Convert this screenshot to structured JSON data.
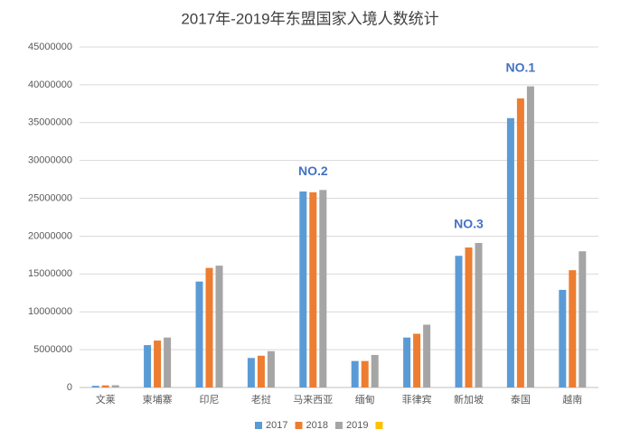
{
  "chart_data": {
    "type": "bar",
    "title": "2017年-2019年东盟国家入境人数统计",
    "categories": [
      "文莱",
      "柬埔寨",
      "印尼",
      "老挝",
      "马来西亚",
      "缅甸",
      "菲律宾",
      "新加坡",
      "泰国",
      "越南"
    ],
    "series": [
      {
        "name": "2017",
        "color": "#5b9bd5",
        "values": [
          218000,
          5600000,
          14000000,
          3900000,
          25900000,
          3500000,
          6600000,
          17400000,
          35600000,
          12900000
        ]
      },
      {
        "name": "2018",
        "color": "#ed7d31",
        "values": [
          278000,
          6200000,
          15800000,
          4200000,
          25800000,
          3500000,
          7100000,
          18500000,
          38200000,
          15500000
        ]
      },
      {
        "name": "2019",
        "color": "#a5a5a5",
        "values": [
          300000,
          6600000,
          16100000,
          4800000,
          26100000,
          4300000,
          8300000,
          19100000,
          39800000,
          18000000
        ]
      }
    ],
    "ylim": [
      0,
      45000000
    ],
    "yticks": [
      0,
      5000000,
      10000000,
      15000000,
      20000000,
      25000000,
      30000000,
      35000000,
      40000000,
      45000000
    ],
    "grid": true,
    "legend": "bottom",
    "annotations": [
      {
        "text": "NO.2",
        "category": "马来西亚"
      },
      {
        "text": "NO.3",
        "category": "新加坡"
      },
      {
        "text": "NO.1",
        "category": "泰国"
      }
    ]
  }
}
